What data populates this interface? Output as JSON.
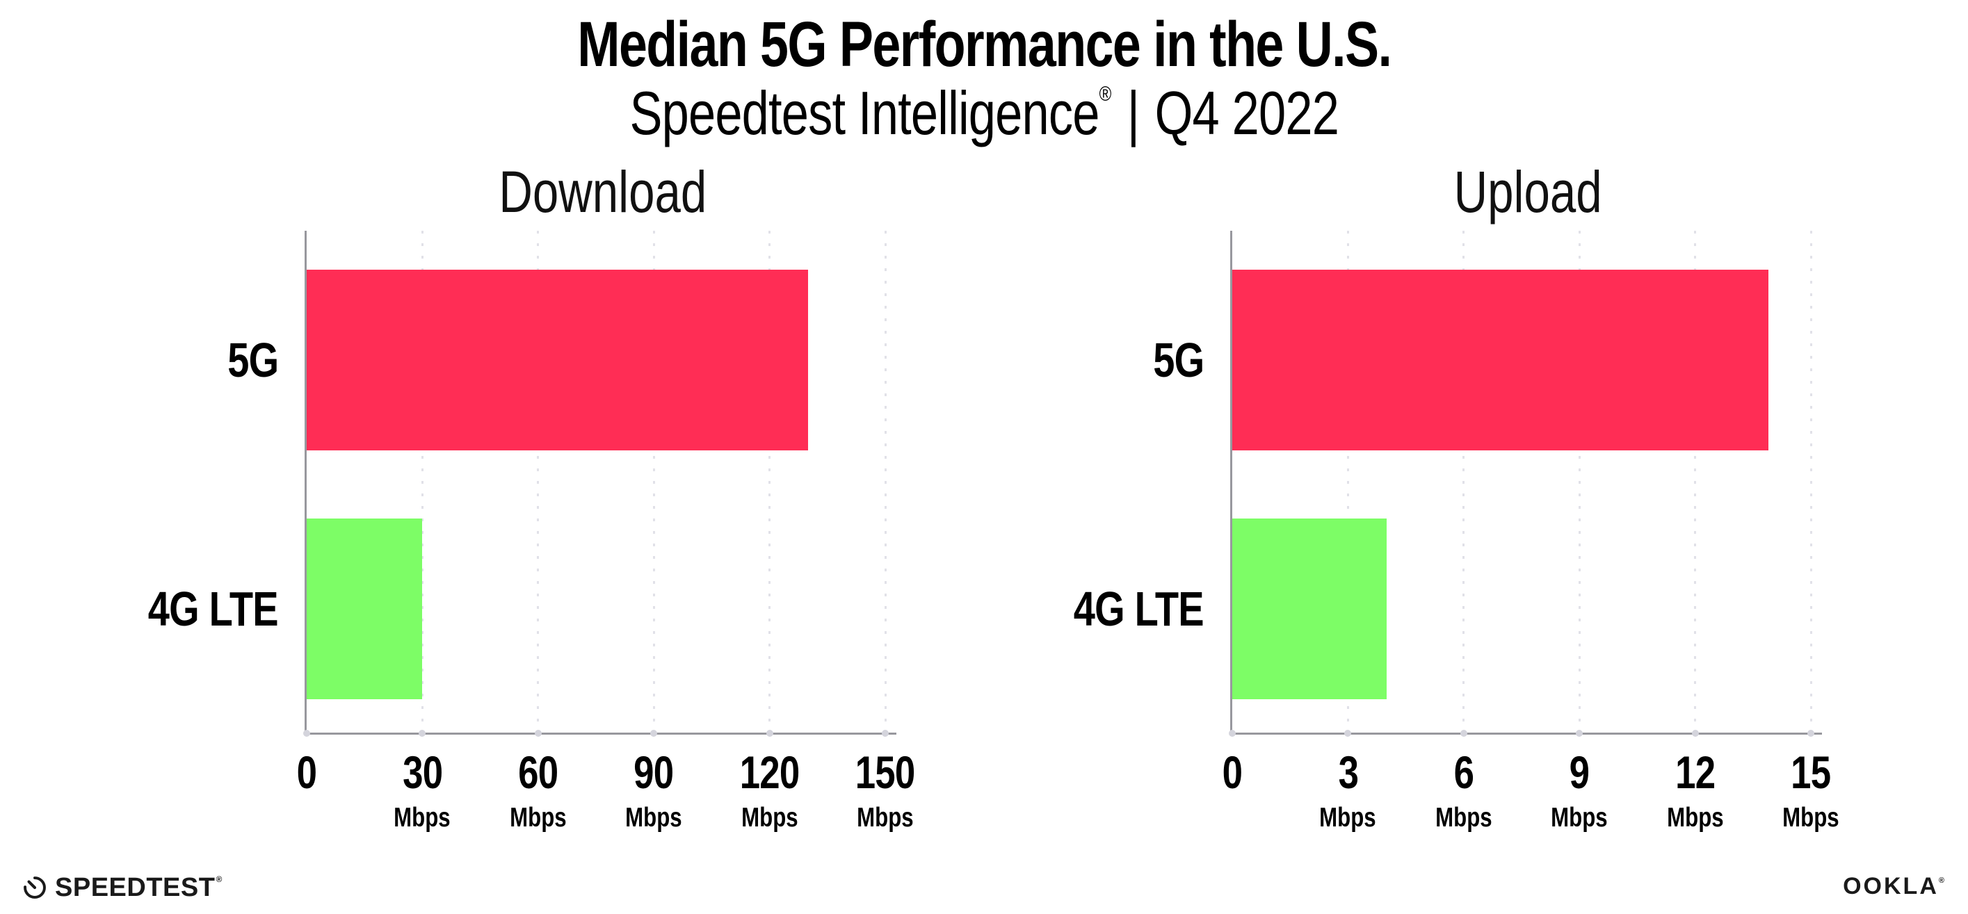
{
  "header": {
    "title": "Median 5G Performance in the U.S.",
    "subtitle_product": "Speedtest Intelligence",
    "subtitle_registered": "®",
    "subtitle_separator": "|",
    "subtitle_period": "Q4 2022"
  },
  "chart_data": [
    {
      "type": "bar",
      "orientation": "horizontal",
      "title": "Download",
      "categories": [
        "5G",
        "4G LTE"
      ],
      "values": [
        130,
        30
      ],
      "unit": "Mbps",
      "xlabel": "Mbps",
      "xlim": [
        0,
        150
      ],
      "xticks": [
        0,
        30,
        60,
        90,
        120,
        150
      ],
      "bar_colors": [
        "#FF2D55",
        "#7DFD66"
      ],
      "grid": "dotted-vertical-gridlines",
      "legend": "none"
    },
    {
      "type": "bar",
      "orientation": "horizontal",
      "title": "Upload",
      "categories": [
        "5G",
        "4G LTE"
      ],
      "values": [
        13.9,
        4
      ],
      "unit": "Mbps",
      "xlabel": "Mbps",
      "xlim": [
        0,
        15
      ],
      "xticks": [
        0,
        3,
        6,
        9,
        12,
        15
      ],
      "bar_colors": [
        "#FF2D55",
        "#7DFD66"
      ],
      "grid": "dotted-vertical-gridlines",
      "legend": "none"
    }
  ],
  "footer": {
    "speedtest_logo_text": "SPEEDTEST",
    "speedtest_mark": "®",
    "ookla_logo_text": "OOKLA",
    "ookla_mark": "®"
  },
  "colors": {
    "background": "#FFFFFF",
    "bar_5g": "#FF2D55",
    "bar_4g_lte": "#7DFD66",
    "axis_line": "#98989E",
    "gridline": "#E1E1E8",
    "tick_dot": "#D4D4DC",
    "title_text": "#000000",
    "panel_title_text": "#111111",
    "logo_text": "#1A1A1A"
  }
}
